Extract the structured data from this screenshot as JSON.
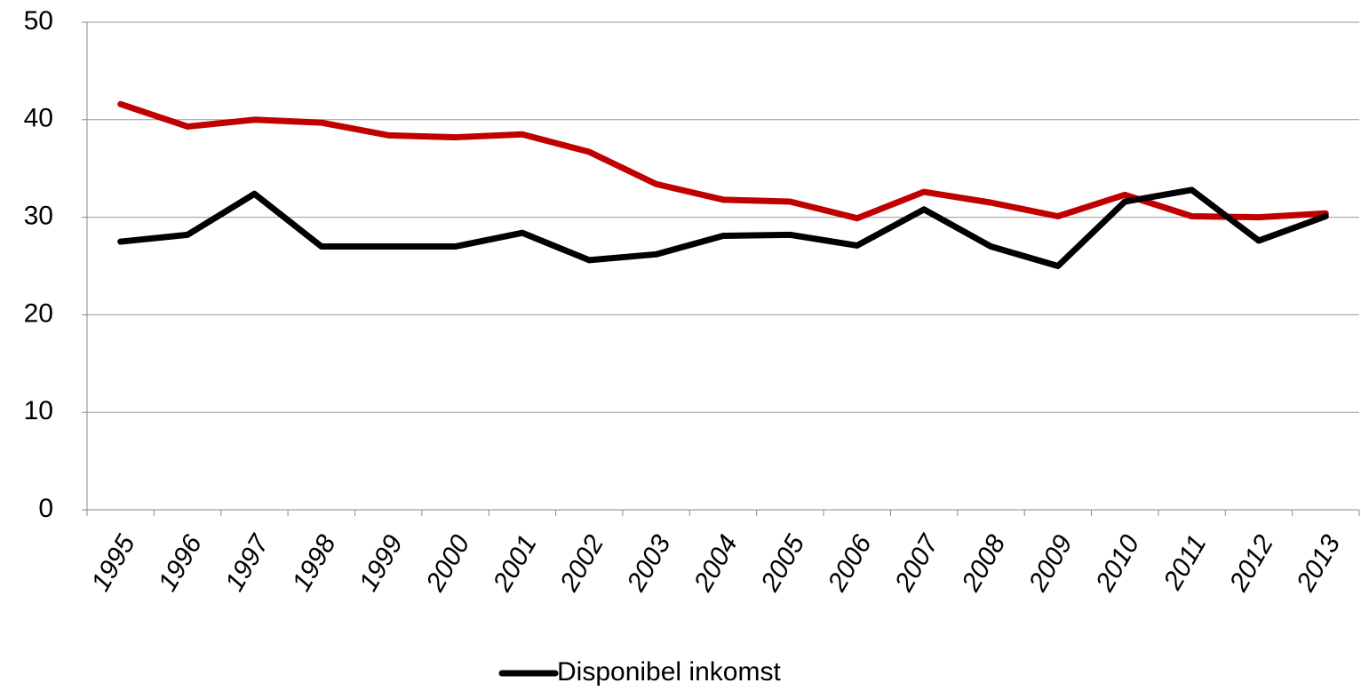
{
  "chart_data": {
    "type": "line",
    "categories": [
      "1995",
      "1996",
      "1997",
      "1998",
      "1999",
      "2000",
      "2001",
      "2002",
      "2003",
      "2004",
      "2005",
      "2006",
      "2007",
      "2008",
      "2009",
      "2010",
      "2011",
      "2012",
      "2013"
    ],
    "series": [
      {
        "name": "Disponibel inkomst",
        "color": "#000000",
        "values": [
          27.5,
          28.2,
          32.4,
          27.0,
          27.0,
          27.0,
          28.4,
          25.6,
          26.2,
          28.1,
          28.2,
          27.1,
          30.8,
          27.0,
          25.0,
          31.6,
          32.8,
          27.6,
          30.1
        ]
      },
      {
        "color": "#c00000",
        "values": [
          41.6,
          39.3,
          40.0,
          39.7,
          38.4,
          38.2,
          38.5,
          36.7,
          33.4,
          31.8,
          31.6,
          29.9,
          32.6,
          31.5,
          30.1,
          32.3,
          30.1,
          30.0,
          30.4
        ]
      }
    ],
    "ylim": [
      0,
      50
    ],
    "yticks": [
      0,
      10,
      20,
      30,
      40,
      50
    ],
    "grid": true
  }
}
